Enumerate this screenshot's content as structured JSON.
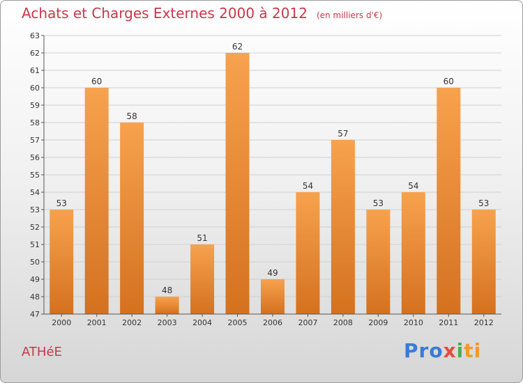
{
  "header": {
    "title": "Achats et Charges Externes 2000 à 2012",
    "unit": "(en milliers d'€)"
  },
  "footer": {
    "place": "ATHéE",
    "logo_parts": [
      "Pro",
      "x",
      "i",
      "ti"
    ]
  },
  "colors": {
    "bar_top": "#f7a24e",
    "bar_bottom": "#d4711f",
    "title": "#c8374a"
  },
  "chart_data": {
    "type": "bar",
    "categories": [
      "2000",
      "2001",
      "2002",
      "2003",
      "2004",
      "2005",
      "2006",
      "2007",
      "2008",
      "2009",
      "2010",
      "2011",
      "2012"
    ],
    "values": [
      53,
      60,
      58,
      48,
      51,
      62,
      49,
      54,
      57,
      53,
      54,
      60,
      53
    ],
    "title": "Achats et Charges Externes 2000 à 2012",
    "subtitle": "(en milliers d'€)",
    "xlabel": "",
    "ylabel": "",
    "ylim": [
      47,
      63
    ],
    "yticks": [
      47,
      48,
      49,
      50,
      51,
      52,
      53,
      54,
      55,
      56,
      57,
      58,
      59,
      60,
      61,
      62,
      63
    ],
    "grid": true,
    "data_labels": true
  }
}
